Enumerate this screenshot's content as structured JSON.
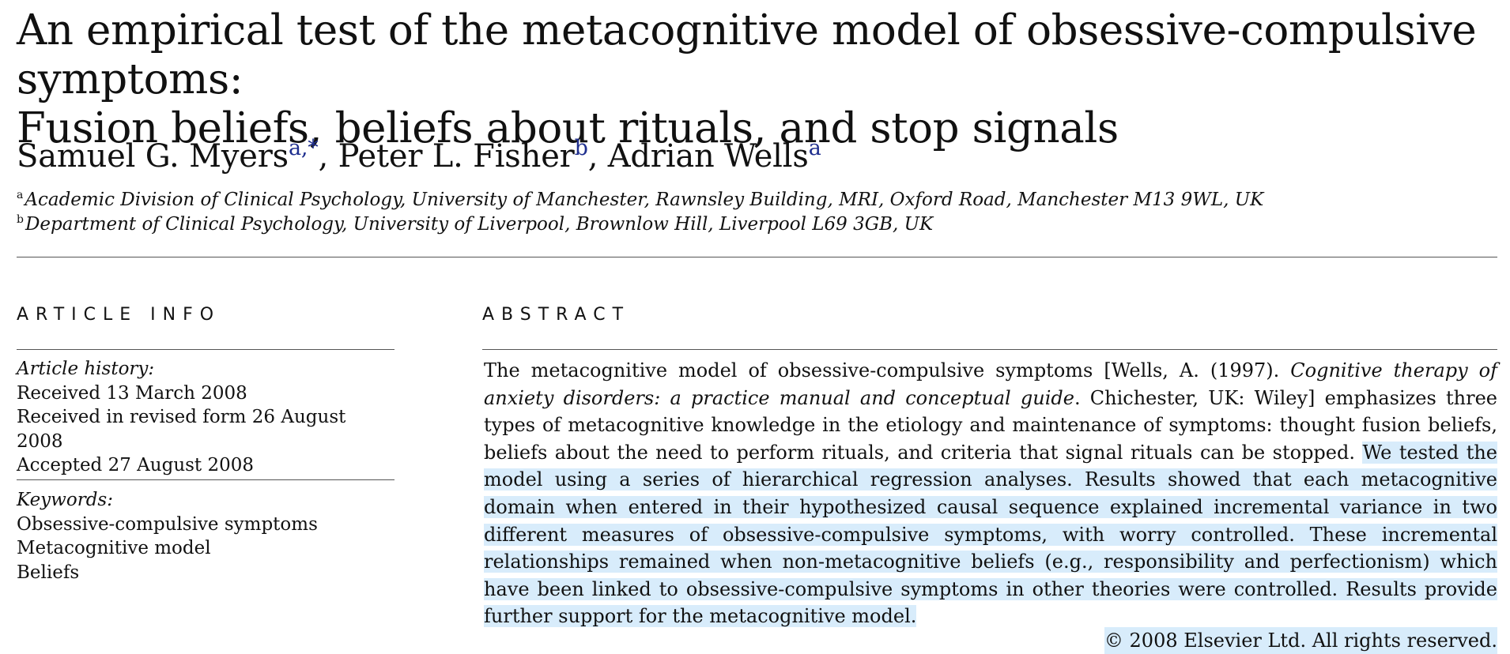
{
  "title": {
    "line1": "An empirical test of the metacognitive model of obsessive-compulsive symptoms:",
    "line2": "Fusion beliefs, beliefs about rituals, and stop signals"
  },
  "authors": [
    {
      "name": "Samuel G. Myers",
      "marks": "a,*"
    },
    {
      "name": "Peter L. Fisher",
      "marks": "b"
    },
    {
      "name": "Adrian Wells",
      "marks": "a"
    }
  ],
  "affiliations": [
    {
      "mark": "a",
      "text": "Academic Division of Clinical Psychology, University of Manchester, Rawnsley Building, MRI, Oxford Road, Manchester M13 9WL, UK"
    },
    {
      "mark": "b",
      "text": "Department of Clinical Psychology, University of Liverpool, Brownlow Hill, Liverpool L69 3GB, UK"
    }
  ],
  "article_info": {
    "heading": "ARTICLE INFO",
    "history_label": "Article history:",
    "history": [
      "Received 13 March 2008",
      "Received in revised form 26 August 2008",
      "Accepted 27 August 2008"
    ],
    "keywords_label": "Keywords:",
    "keywords": [
      "Obsessive-compulsive symptoms",
      "Metacognitive model",
      "Beliefs"
    ]
  },
  "abstract": {
    "heading": "ABSTRACT",
    "part1": "The metacognitive model of obsessive-compulsive symptoms [Wells, A. (1997). ",
    "italic_citation": "Cognitive therapy of anxiety disorders: a practice manual and conceptual guide",
    "part2": ". Chichester, UK: Wiley] emphasizes three types of metacognitive knowledge in the etiology and maintenance of symptoms: thought fusion beliefs, beliefs about the need to perform rituals, and criteria that signal rituals can be stopped. ",
    "highlighted": "We tested the model using a series of hierarchical regression analyses. Results showed that each metacognitive domain when entered in their hypothesized causal sequence explained incremental variance in two different measures of obsessive-compulsive symptoms, with worry controlled. These incremental relationships remained when non-metacognitive beliefs (e.g., responsibility and perfectionism) which have been linked to obsessive-compulsive symptoms in other theories were controlled. Results provide further support for the metacognitive model.",
    "copyright": "© 2008 Elsevier Ltd. All rights reserved."
  },
  "colors": {
    "link": "#1f2f8f",
    "selection_highlight": "#d8ecfb"
  }
}
